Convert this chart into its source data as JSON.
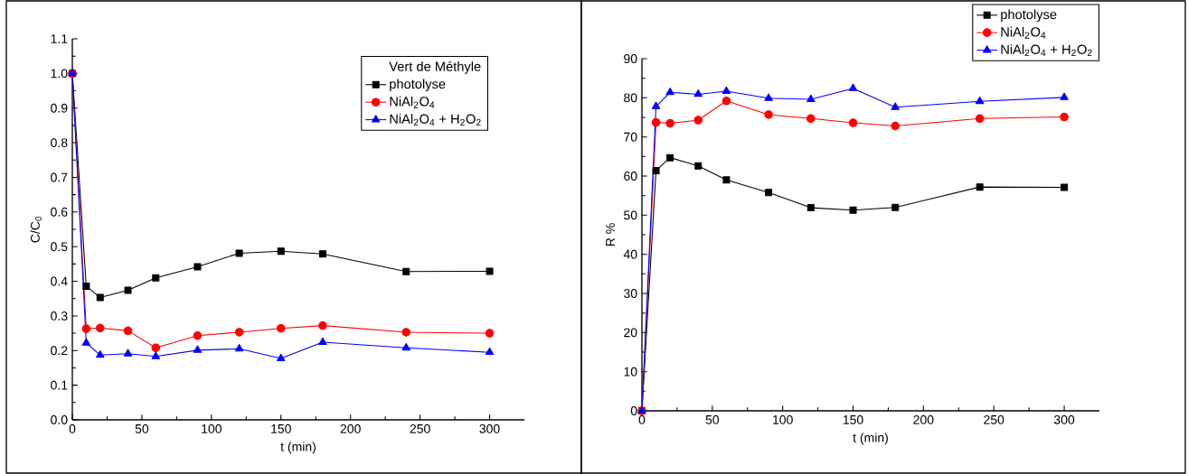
{
  "chart_data": [
    {
      "type": "line",
      "xlabel": "t (min)",
      "ylabel": "C/C$_{0}$",
      "legend_title": "Vert de Méthyle",
      "legend": "top right",
      "x": [
        0,
        10,
        20,
        40,
        60,
        90,
        120,
        150,
        180,
        240,
        300
      ],
      "xlim": [
        0,
        325
      ],
      "ylim": [
        0,
        1.1
      ],
      "xticks": [
        0,
        50,
        100,
        150,
        200,
        250,
        300
      ],
      "yticks": [
        {
          "value": 0,
          "label": "0.0"
        },
        0.1,
        0.2,
        0.3,
        0.4,
        0.5,
        0.6,
        0.7,
        0.8,
        0.9,
        {
          "value": 1,
          "label": "1.0"
        },
        1.1
      ],
      "grid": false,
      "series": [
        {
          "name": "photolyse",
          "color": "#000000",
          "marker": "square",
          "values": [
            1.0,
            0.386,
            0.353,
            0.374,
            0.41,
            0.442,
            0.481,
            0.487,
            0.479,
            0.428,
            0.429
          ]
        },
        {
          "name": "NiAl$_{2}$O$_{4}$",
          "color": "#ff0000",
          "marker": "circle",
          "values": [
            1.0,
            0.263,
            0.265,
            0.257,
            0.208,
            0.243,
            0.253,
            0.264,
            0.272,
            0.253,
            0.25
          ]
        },
        {
          "name": "NiAl$_{2}$O$_{4}$ + H$_{2}$O$_{2}$",
          "color": "#0000ff",
          "marker": "triangle",
          "values": [
            1.0,
            0.222,
            0.187,
            0.191,
            0.183,
            0.201,
            0.205,
            0.177,
            0.224,
            0.208,
            0.195
          ]
        }
      ]
    },
    {
      "type": "line",
      "xlabel": "t (min)",
      "ylabel": "R %",
      "legend": "top right",
      "x": [
        0,
        10,
        20,
        40,
        60,
        90,
        120,
        150,
        180,
        240,
        300
      ],
      "xlim": [
        0,
        325
      ],
      "ylim": [
        0,
        90
      ],
      "xticks": [
        0,
        50,
        100,
        150,
        200,
        250,
        300
      ],
      "yticks": [
        0,
        10,
        20,
        30,
        40,
        50,
        60,
        70,
        80,
        90
      ],
      "grid": false,
      "series": [
        {
          "name": "photolyse",
          "color": "#000000",
          "marker": "square",
          "values": [
            0,
            61.4,
            64.7,
            62.6,
            59,
            55.8,
            51.9,
            51.3,
            52,
            57.2,
            57.1
          ]
        },
        {
          "name": "NiAl$_{2}$O$_{4}$",
          "color": "#ff0000",
          "marker": "circle",
          "values": [
            0,
            73.7,
            73.5,
            74.3,
            79.2,
            75.7,
            74.7,
            73.6,
            72.8,
            74.7,
            75.1
          ]
        },
        {
          "name": "NiAl$_{2}$O$_{4}$ + H$_{2}$O$_{2}$",
          "color": "#0000ff",
          "marker": "triangle",
          "values": [
            0,
            77.8,
            81.4,
            80.9,
            81.7,
            79.9,
            79.6,
            82.4,
            77.6,
            79.1,
            80.1
          ]
        }
      ]
    }
  ]
}
